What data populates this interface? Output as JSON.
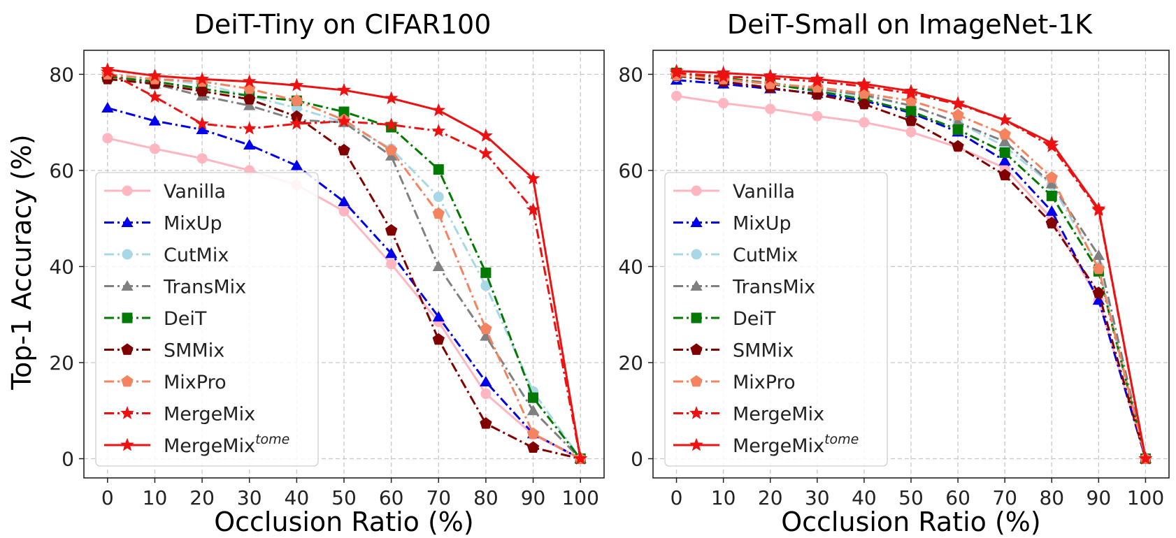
{
  "figure": {
    "shared_ylabel": "Top-1 Accuracy (%)"
  },
  "chart_data": [
    {
      "type": "line",
      "title": "DeiT-Tiny on CIFAR100",
      "xlabel": "Occlusion Ratio (%)",
      "ylabel": "Top-1 Accuracy (%)",
      "x": [
        0,
        10,
        20,
        30,
        40,
        50,
        60,
        70,
        80,
        90,
        100
      ],
      "xlim": [
        -5,
        105
      ],
      "ylim": [
        -4,
        85
      ],
      "xticks": [
        0,
        10,
        20,
        30,
        40,
        50,
        60,
        70,
        80,
        90,
        100
      ],
      "yticks": [
        0,
        20,
        40,
        60,
        80
      ],
      "grid": true,
      "legend_position": "center-left",
      "series": [
        {
          "name": "Vanilla",
          "color": "#ffb6c1",
          "marker": "circle",
          "line": "solid",
          "values": [
            66.7,
            64.5,
            62.5,
            60.0,
            57.0,
            51.5,
            40.5,
            28.5,
            13.5,
            5.0,
            0.0
          ]
        },
        {
          "name": "MixUp",
          "color": "#0000ee",
          "marker": "triangle",
          "line": "dashdot",
          "values": [
            73.0,
            70.3,
            68.5,
            65.3,
            61.0,
            53.5,
            42.7,
            29.5,
            16.0,
            5.2,
            0.0
          ]
        },
        {
          "name": "CutMix",
          "color": "#a8d8e8",
          "marker": "circle",
          "line": "dashdot",
          "values": [
            80.0,
            79.0,
            78.0,
            75.5,
            73.0,
            70.0,
            64.5,
            54.5,
            36.0,
            14.0,
            0.0
          ]
        },
        {
          "name": "TransMix",
          "color": "#808080",
          "marker": "triangle",
          "line": "dashdot",
          "values": [
            79.8,
            78.0,
            75.5,
            73.5,
            70.5,
            70.0,
            63.0,
            40.0,
            25.5,
            10.0,
            0.0
          ]
        },
        {
          "name": "DeiT",
          "color": "#007a00",
          "marker": "square",
          "line": "dashdot",
          "values": [
            79.5,
            78.5,
            77.0,
            75.5,
            74.5,
            72.2,
            69.0,
            60.2,
            38.7,
            12.7,
            0.0
          ]
        },
        {
          "name": "SMMix",
          "color": "#800000",
          "marker": "pentagon",
          "line": "dashdot",
          "values": [
            79.0,
            78.0,
            76.5,
            74.8,
            71.2,
            64.2,
            47.5,
            24.8,
            7.3,
            2.3,
            0.0
          ]
        },
        {
          "name": "MixPro",
          "color": "#f4845f",
          "marker": "pentagon",
          "line": "dashdot",
          "values": [
            80.0,
            79.0,
            78.5,
            77.0,
            74.5,
            70.5,
            64.2,
            51.0,
            27.0,
            5.2,
            0.0
          ]
        },
        {
          "name": "MergeMix",
          "color": "#ee1111",
          "marker": "star",
          "line": "dashdot",
          "values": [
            80.5,
            75.3,
            69.7,
            68.7,
            69.7,
            70.2,
            69.5,
            68.2,
            63.5,
            51.8,
            0.0
          ]
        },
        {
          "name": "MergeMix",
          "name_sup": "tome",
          "color": "#ee1111",
          "marker": "star",
          "line": "solid",
          "values": [
            81.0,
            79.7,
            79.0,
            78.5,
            77.7,
            76.7,
            75.0,
            72.5,
            67.2,
            58.3,
            0.0
          ]
        }
      ]
    },
    {
      "type": "line",
      "title": "DeiT-Small on ImageNet-1K",
      "xlabel": "Occlusion Ratio (%)",
      "ylabel": "",
      "x": [
        0,
        10,
        20,
        30,
        40,
        50,
        60,
        70,
        80,
        90,
        100
      ],
      "xlim": [
        -5,
        105
      ],
      "ylim": [
        -4,
        85
      ],
      "xticks": [
        0,
        10,
        20,
        30,
        40,
        50,
        60,
        70,
        80,
        90,
        100
      ],
      "yticks": [
        0,
        20,
        40,
        60,
        80
      ],
      "grid": true,
      "legend_position": "center-left",
      "series": [
        {
          "name": "Vanilla",
          "color": "#ffb6c1",
          "marker": "circle",
          "line": "solid",
          "values": [
            75.5,
            74.0,
            72.8,
            71.3,
            70.0,
            68.0,
            64.8,
            60.5,
            50.0,
            33.0,
            0.0
          ]
        },
        {
          "name": "MixUp",
          "color": "#0000ee",
          "marker": "triangle",
          "line": "dashdot",
          "values": [
            78.8,
            78.0,
            77.0,
            76.0,
            74.5,
            72.0,
            68.0,
            62.0,
            51.5,
            33.0,
            0.0
          ]
        },
        {
          "name": "CutMix",
          "color": "#a8d8e8",
          "marker": "circle",
          "line": "dashdot",
          "values": [
            79.5,
            78.8,
            78.0,
            76.8,
            75.5,
            73.5,
            70.0,
            65.0,
            57.0,
            40.0,
            0.0
          ]
        },
        {
          "name": "TransMix",
          "color": "#808080",
          "marker": "triangle",
          "line": "dashdot",
          "values": [
            80.0,
            79.2,
            78.2,
            77.0,
            75.7,
            73.5,
            70.0,
            66.0,
            57.2,
            42.3,
            0.0
          ]
        },
        {
          "name": "DeiT",
          "color": "#007a00",
          "marker": "square",
          "line": "dashdot",
          "values": [
            80.3,
            79.3,
            78.0,
            76.5,
            74.8,
            72.3,
            68.5,
            63.7,
            54.7,
            39.0,
            0.0
          ]
        },
        {
          "name": "SMMix",
          "color": "#800000",
          "marker": "pentagon",
          "line": "dashdot",
          "values": [
            79.7,
            78.5,
            77.2,
            75.8,
            73.8,
            70.3,
            65.0,
            59.0,
            49.0,
            34.5,
            0.0
          ]
        },
        {
          "name": "MixPro",
          "color": "#f4845f",
          "marker": "pentagon",
          "line": "dashdot",
          "values": [
            79.8,
            79.0,
            78.0,
            77.3,
            76.0,
            74.5,
            71.5,
            67.5,
            58.5,
            39.5,
            0.0
          ]
        },
        {
          "name": "MergeMix",
          "color": "#ee1111",
          "marker": "star",
          "line": "dashdot",
          "values": [
            80.3,
            79.5,
            79.2,
            78.5,
            77.5,
            76.0,
            73.8,
            70.5,
            65.0,
            51.7,
            0.0
          ]
        },
        {
          "name": "MergeMix",
          "name_sup": "tome",
          "color": "#ee1111",
          "marker": "star",
          "line": "solid",
          "values": [
            80.7,
            80.3,
            79.7,
            79.0,
            78.0,
            76.5,
            74.0,
            70.5,
            65.7,
            52.0,
            0.0
          ]
        }
      ]
    }
  ]
}
